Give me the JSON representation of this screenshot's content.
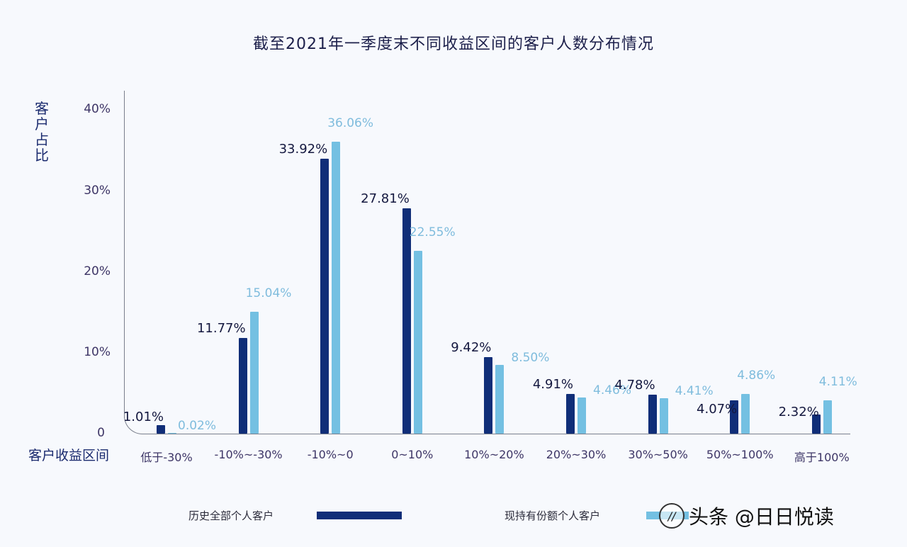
{
  "chart_data": {
    "type": "bar",
    "title": "截至2021年一季度末不同收益区间的客户人数分布情况",
    "xlabel": "客户收益区间",
    "ylabel": "客户占比",
    "ylim": [
      0,
      40
    ],
    "yticks": [
      "0",
      "10%",
      "20%",
      "30%",
      "40%"
    ],
    "grid": false,
    "legend_position": "bottom",
    "categories": [
      "低于-30%",
      "-10%~-30%",
      "-10%~0",
      "0~10%",
      "10%~20%",
      "20%~30%",
      "30%~50%",
      "50%~100%",
      "高于100%"
    ],
    "series": [
      {
        "name": "历史全部个人客户",
        "color": "#102e78",
        "values": [
          1.01,
          11.77,
          33.92,
          27.81,
          9.42,
          4.91,
          4.78,
          4.07,
          2.32
        ],
        "labels": [
          "1.01%",
          "11.77%",
          "33.92%",
          "27.81%",
          "9.42%",
          "4.91%",
          "4.78%",
          "4.07%",
          "2.32%"
        ]
      },
      {
        "name": "现持有份额个人客户",
        "color": "#74c0e2",
        "values": [
          0.02,
          15.04,
          36.06,
          22.55,
          8.5,
          4.46,
          4.41,
          4.86,
          4.11
        ],
        "labels": [
          "0.02%",
          "15.04%",
          "36.06%",
          "22.55%",
          "8.50%",
          "4.46%",
          "4.41%",
          "4.86%",
          "4.11%"
        ]
      }
    ]
  },
  "ui": {
    "ylabel_chars": [
      "客",
      "户",
      "占",
      "比"
    ],
    "ytick_labels": {
      "t40": "40%",
      "t30": "30%",
      "t20": "20%",
      "t10": "10%",
      "t0": "0"
    },
    "legend": {
      "dark_label": "历史全部个人客户",
      "light_label": "现持有份额个人客户"
    },
    "watermark": {
      "logo_text": "//",
      "text": "头条 @日日悦读"
    }
  }
}
